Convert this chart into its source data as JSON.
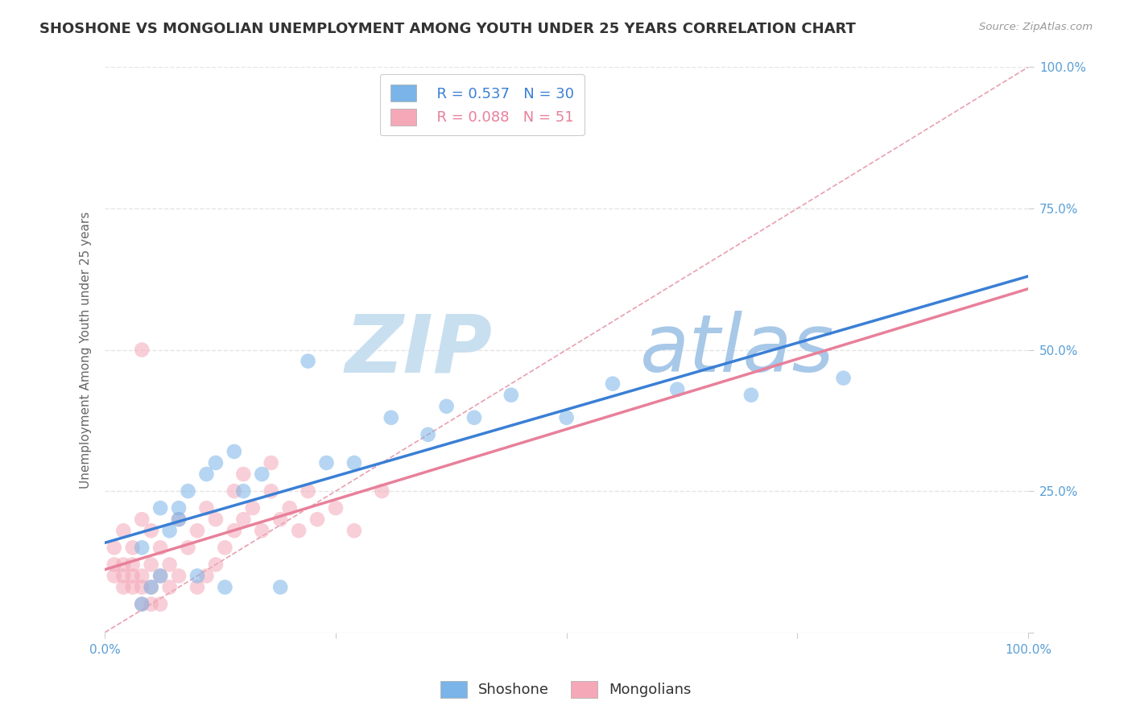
{
  "title": "SHOSHONE VS MONGOLIAN UNEMPLOYMENT AMONG YOUTH UNDER 25 YEARS CORRELATION CHART",
  "source": "Source: ZipAtlas.com",
  "ylabel": "Unemployment Among Youth under 25 years",
  "xlim": [
    0,
    1.0
  ],
  "ylim": [
    0,
    1.0
  ],
  "xticks": [
    0.0,
    0.25,
    0.5,
    0.75,
    1.0
  ],
  "yticks": [
    0.0,
    0.25,
    0.5,
    0.75,
    1.0
  ],
  "xtick_labels": [
    "0.0%",
    "",
    "",
    "",
    "100.0%"
  ],
  "ytick_labels_right": [
    "",
    "25.0%",
    "50.0%",
    "75.0%",
    "100.0%"
  ],
  "shoshone_color": "#7ab4e8",
  "mongolian_color": "#f4a8b8",
  "shoshone_R": 0.537,
  "shoshone_N": 30,
  "mongolian_R": 0.088,
  "mongolian_N": 51,
  "shoshone_line_color": "#3a7fd5",
  "mongolian_line_color": "#e8809a",
  "diagonal_color": "#e8a0b0",
  "watermark_zip": "ZIP",
  "watermark_atlas": "atlas",
  "watermark_color_zip": "#c8dff0",
  "watermark_color_atlas": "#a8c8e8",
  "shoshone_x": [
    0.04,
    0.05,
    0.06,
    0.07,
    0.08,
    0.09,
    0.1,
    0.12,
    0.14,
    0.17,
    0.19,
    0.22,
    0.27,
    0.35,
    0.44,
    0.5,
    0.62,
    0.7,
    0.8,
    0.04,
    0.06,
    0.08,
    0.11,
    0.13,
    0.15,
    0.24,
    0.31,
    0.37,
    0.4,
    0.55
  ],
  "shoshone_y": [
    0.05,
    0.08,
    0.1,
    0.18,
    0.2,
    0.25,
    0.1,
    0.3,
    0.32,
    0.28,
    0.08,
    0.48,
    0.3,
    0.35,
    0.42,
    0.38,
    0.43,
    0.42,
    0.45,
    0.15,
    0.22,
    0.22,
    0.28,
    0.08,
    0.25,
    0.3,
    0.38,
    0.4,
    0.38,
    0.44
  ],
  "mongolian_x": [
    0.01,
    0.01,
    0.01,
    0.02,
    0.02,
    0.02,
    0.02,
    0.03,
    0.03,
    0.03,
    0.03,
    0.04,
    0.04,
    0.04,
    0.04,
    0.05,
    0.05,
    0.05,
    0.05,
    0.06,
    0.06,
    0.06,
    0.07,
    0.07,
    0.08,
    0.08,
    0.09,
    0.1,
    0.1,
    0.11,
    0.11,
    0.12,
    0.12,
    0.13,
    0.14,
    0.14,
    0.15,
    0.15,
    0.16,
    0.17,
    0.18,
    0.18,
    0.19,
    0.2,
    0.21,
    0.22,
    0.23,
    0.25,
    0.27,
    0.3,
    0.04
  ],
  "mongolian_y": [
    0.1,
    0.12,
    0.15,
    0.08,
    0.1,
    0.12,
    0.18,
    0.08,
    0.1,
    0.12,
    0.15,
    0.05,
    0.08,
    0.1,
    0.2,
    0.05,
    0.08,
    0.12,
    0.18,
    0.05,
    0.1,
    0.15,
    0.08,
    0.12,
    0.1,
    0.2,
    0.15,
    0.08,
    0.18,
    0.1,
    0.22,
    0.12,
    0.2,
    0.15,
    0.18,
    0.25,
    0.2,
    0.28,
    0.22,
    0.18,
    0.25,
    0.3,
    0.2,
    0.22,
    0.18,
    0.25,
    0.2,
    0.22,
    0.18,
    0.25,
    0.5
  ],
  "background_color": "#ffffff",
  "grid_color": "#e5e5e5",
  "title_fontsize": 13,
  "label_fontsize": 11,
  "tick_fontsize": 11,
  "legend_fontsize": 13,
  "scatter_size": 180,
  "scatter_alpha": 0.55,
  "line_width": 2.5
}
